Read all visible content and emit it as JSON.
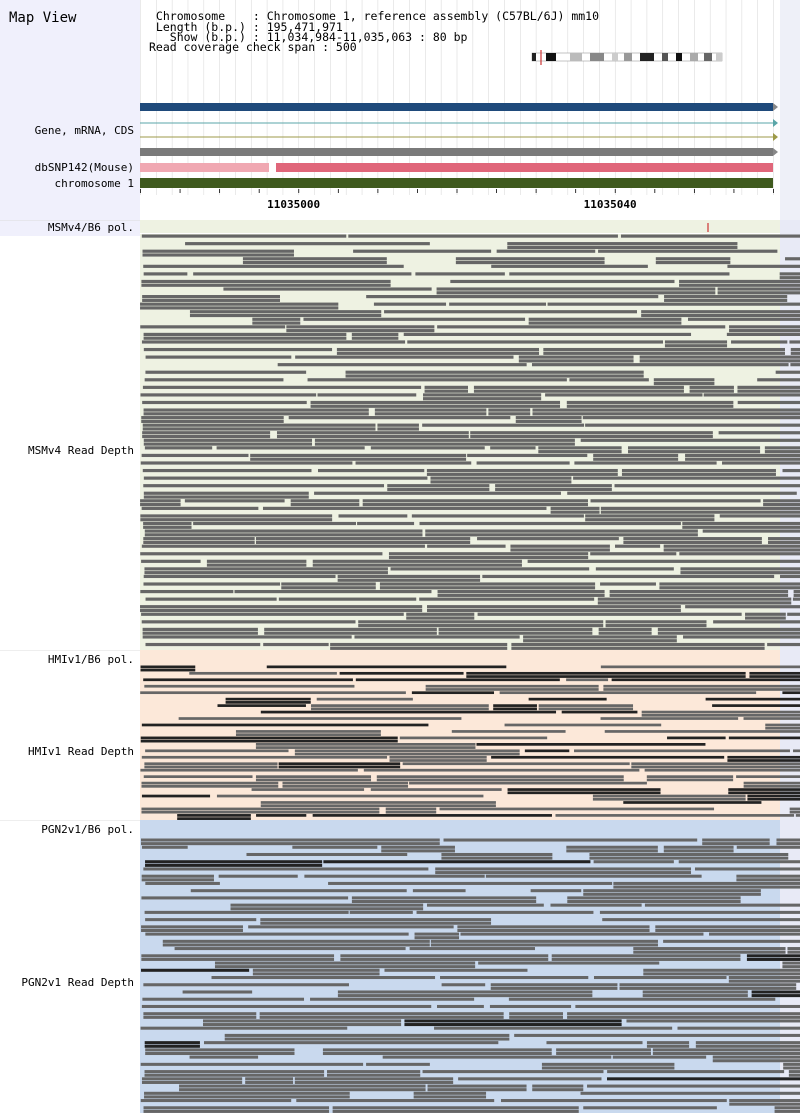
{
  "header": {
    "title": "Map View",
    "info_lines": [
      " Chromosome    : Chromosome 1, reference assembly (C57BL/6J) mm10",
      " Length (b.p.) : 195,471,971",
      "   Show (b.p.) : 11,034,984-11,035,063 : 80 bp",
      "Read coverage check span : 500"
    ]
  },
  "region": {
    "start": 11034984,
    "end": 11035063,
    "length_bp": 80
  },
  "axis": {
    "ticks": [
      11035000,
      11035040
    ]
  },
  "tracks": {
    "gene": {
      "label": "Gene, mRNA, CDS"
    },
    "snp": {
      "label": "dbSNP142(Mouse)"
    },
    "chrom": {
      "label": "chromosome 1"
    }
  },
  "strains": [
    {
      "pol_label": "MSMv4/B6 pol.",
      "depth_label": "MSMv4 Read Depth",
      "color": "#eef2e2"
    },
    {
      "pol_label": "HMIv1/B6 pol.",
      "depth_label": "HMIv1 Read Depth",
      "color": "#fce8d9"
    },
    {
      "pol_label": "PGN2v1/B6 pol.",
      "depth_label": "PGN2v1 Read Depth",
      "color": "#c9d9ee"
    }
  ],
  "colors": {
    "left_panel": "#f0f0fc",
    "gene_bar": "#1f4a7b",
    "mrna_line": "#5aa6a8",
    "cds_line": "#9d9a48",
    "gray_bar": "#7a7a7a",
    "snp_bar": "#e0667a",
    "snp_bar_light": "#f0a8b2",
    "chrom_bar": "#3f5a1e",
    "read": "#666666",
    "read_dark": "#222222",
    "variant_tick": "#cc3333"
  }
}
